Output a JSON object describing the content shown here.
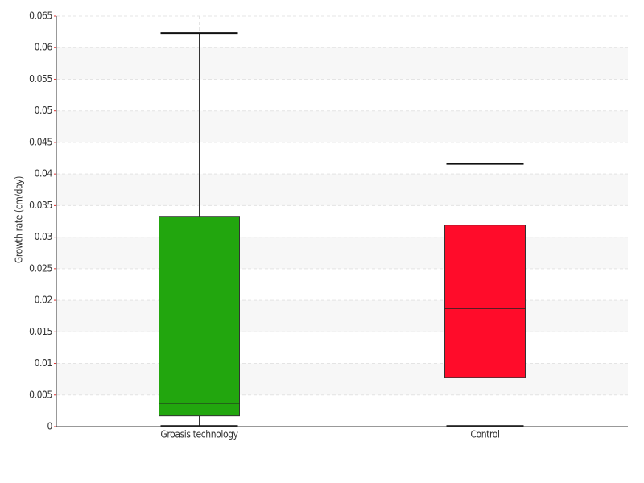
{
  "chart_data": {
    "type": "box",
    "y_label": "Growth rate (cm/day)",
    "categories": [
      "Groasis technology",
      "Control"
    ],
    "colors": [
      "#22a60e",
      "#ff0c2a"
    ],
    "min": [
      0.0001,
      0.0001
    ],
    "q1": [
      0.0017,
      0.0078
    ],
    "median": [
      0.0037,
      0.0187
    ],
    "q3": [
      0.0333,
      0.0319
    ],
    "max": [
      0.0623,
      0.0416
    ],
    "ylim": [
      0,
      0.065
    ],
    "yticks": [
      0,
      0.005,
      0.01,
      0.015,
      0.02,
      0.025,
      0.03,
      0.035,
      0.04,
      0.045,
      0.05,
      0.055,
      0.06,
      0.065
    ],
    "grid": true
  }
}
